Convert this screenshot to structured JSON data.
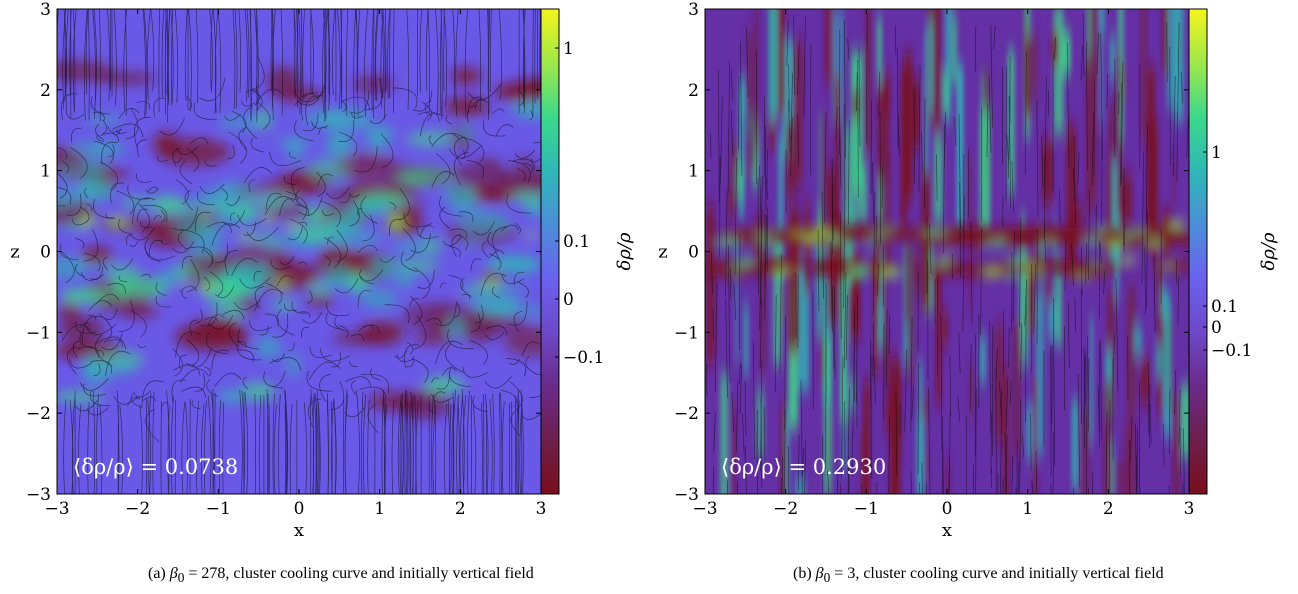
{
  "chart_data": [
    {
      "type": "heatmap",
      "panel_label": "(a)",
      "beta_symbol": "β",
      "beta_sub": "0",
      "caption_rest": " = 278, cluster cooling curve and initially vertical field",
      "xlabel": "x",
      "ylabel": "z",
      "xlim": [
        -3,
        3
      ],
      "ylim": [
        -3,
        3
      ],
      "xticks": [
        -3,
        -2,
        -1,
        0,
        1,
        2,
        3
      ],
      "yticks": [
        -3,
        -2,
        -1,
        0,
        1,
        2,
        3
      ],
      "xtick_labels": [
        "−3",
        "−2",
        "−1",
        "0",
        "1",
        "2",
        "3"
      ],
      "ytick_labels": [
        "−3",
        "−2",
        "−1",
        "0",
        "1",
        "2",
        "3"
      ],
      "annotation": "⟨δρ/ρ⟩ = 0.0738",
      "colorbar": {
        "label": "δρ/ρ",
        "ticks": [
          {
            "value": 1,
            "label": "1"
          },
          {
            "value": 0.1,
            "label": "0.1"
          },
          {
            "value": 0,
            "label": "0"
          },
          {
            "value": -0.1,
            "label": "−0.1"
          }
        ]
      },
      "field_lines": "mostly vertical at |z| > 2, tangled for |z| < 2",
      "dense_band_z": [
        0.3,
        -0.3
      ]
    },
    {
      "type": "heatmap",
      "panel_label": "(b)",
      "beta_symbol": "β",
      "beta_sub": "0",
      "caption_rest": " = 3, cluster cooling curve and initially vertical field",
      "xlabel": "x",
      "ylabel": "z",
      "xlim": [
        -3,
        3
      ],
      "ylim": [
        -3,
        3
      ],
      "xticks": [
        -3,
        -2,
        -1,
        0,
        1,
        2,
        3
      ],
      "yticks": [
        -3,
        -2,
        -1,
        0,
        1,
        2,
        3
      ],
      "xtick_labels": [
        "−3",
        "−2",
        "−1",
        "0",
        "1",
        "2",
        "3"
      ],
      "ytick_labels": [
        "−3",
        "−2",
        "−1",
        "0",
        "1",
        "2",
        "3"
      ],
      "annotation": "⟨δρ/ρ⟩ = 0.2930",
      "colorbar": {
        "label": "δρ/ρ",
        "ticks": [
          {
            "value": 1,
            "label": "1"
          },
          {
            "value": 0.1,
            "label": "0.1"
          },
          {
            "value": 0,
            "label": "0"
          },
          {
            "value": -0.1,
            "label": "−0.1"
          }
        ]
      },
      "field_lines": "vertical throughout",
      "dense_band_z": [
        0.2,
        -0.2
      ]
    }
  ],
  "colors": {
    "colormap": [
      "#7a0d1c",
      "#6e1f4c",
      "#6a2a8a",
      "#6d48c8",
      "#6b62ee",
      "#4a8ed8",
      "#2fb8b5",
      "#3cd98a",
      "#9fe84a",
      "#f4f51c"
    ],
    "background_purple": "#6a59e6",
    "background_purple_b": "#652fa5",
    "streamline": "#000000"
  }
}
